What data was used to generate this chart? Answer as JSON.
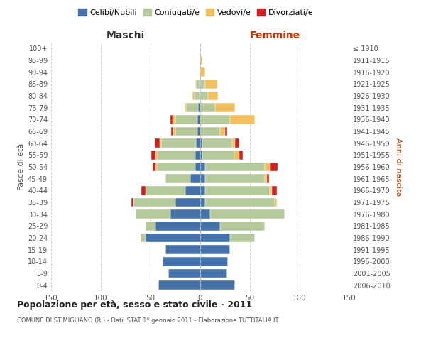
{
  "age_groups": [
    "0-4",
    "5-9",
    "10-14",
    "15-19",
    "20-24",
    "25-29",
    "30-34",
    "35-39",
    "40-44",
    "45-49",
    "50-54",
    "55-59",
    "60-64",
    "65-69",
    "70-74",
    "75-79",
    "80-84",
    "85-89",
    "90-94",
    "95-99",
    "100+"
  ],
  "birth_years": [
    "2006-2010",
    "2001-2005",
    "1996-2000",
    "1991-1995",
    "1986-1990",
    "1981-1985",
    "1976-1980",
    "1971-1975",
    "1966-1970",
    "1961-1965",
    "1956-1960",
    "1951-1955",
    "1946-1950",
    "1941-1945",
    "1936-1940",
    "1931-1935",
    "1926-1930",
    "1921-1925",
    "1916-1920",
    "1911-1915",
    "≤ 1910"
  ],
  "maschi_celibi": [
    42,
    32,
    38,
    35,
    55,
    45,
    30,
    25,
    15,
    10,
    5,
    5,
    4,
    3,
    3,
    2,
    1,
    1,
    0,
    0,
    0
  ],
  "maschi_coniugati": [
    0,
    0,
    0,
    0,
    5,
    10,
    35,
    42,
    40,
    25,
    38,
    38,
    35,
    22,
    22,
    12,
    5,
    3,
    1,
    0,
    0
  ],
  "maschi_vedovi": [
    0,
    0,
    0,
    0,
    0,
    0,
    0,
    0,
    0,
    0,
    2,
    2,
    2,
    2,
    3,
    2,
    2,
    1,
    0,
    0,
    0
  ],
  "maschi_divorziati": [
    0,
    0,
    0,
    0,
    0,
    0,
    0,
    2,
    4,
    0,
    3,
    4,
    5,
    2,
    2,
    0,
    0,
    0,
    0,
    0,
    0
  ],
  "femmine_nubili": [
    35,
    27,
    28,
    30,
    30,
    20,
    10,
    5,
    5,
    5,
    5,
    2,
    2,
    0,
    0,
    0,
    0,
    0,
    0,
    0,
    0
  ],
  "femmine_coniugate": [
    0,
    0,
    0,
    0,
    25,
    45,
    75,
    70,
    65,
    60,
    60,
    32,
    30,
    20,
    30,
    15,
    8,
    5,
    0,
    0,
    0
  ],
  "femmine_vedove": [
    0,
    0,
    0,
    0,
    0,
    0,
    0,
    2,
    2,
    2,
    5,
    5,
    3,
    5,
    25,
    20,
    10,
    12,
    5,
    2,
    0
  ],
  "femmine_divorziate": [
    0,
    0,
    0,
    0,
    0,
    0,
    0,
    0,
    5,
    2,
    8,
    4,
    4,
    2,
    0,
    0,
    0,
    0,
    0,
    0,
    0
  ],
  "color_celibi": "#4472a8",
  "color_coniugati": "#b5c99a",
  "color_vedovi": "#f0c060",
  "color_divorziati": "#cc2222",
  "xlim": 150,
  "title": "Popolazione per età, sesso e stato civile - 2011",
  "subtitle": "COMUNE DI STIMIGLIANO (RI) - Dati ISTAT 1° gennaio 2011 - Elaborazione TUTTITALIA.IT",
  "legend_labels": [
    "Celibi/Nubili",
    "Coniugati/e",
    "Vedovi/e",
    "Divorziati/e"
  ],
  "label_maschi": "Maschi",
  "label_femmine": "Femmine",
  "ylabel_left": "Fasce di età",
  "ylabel_right": "Anni di nascita",
  "bg_color": "#ffffff",
  "grid_color": "#cccccc"
}
